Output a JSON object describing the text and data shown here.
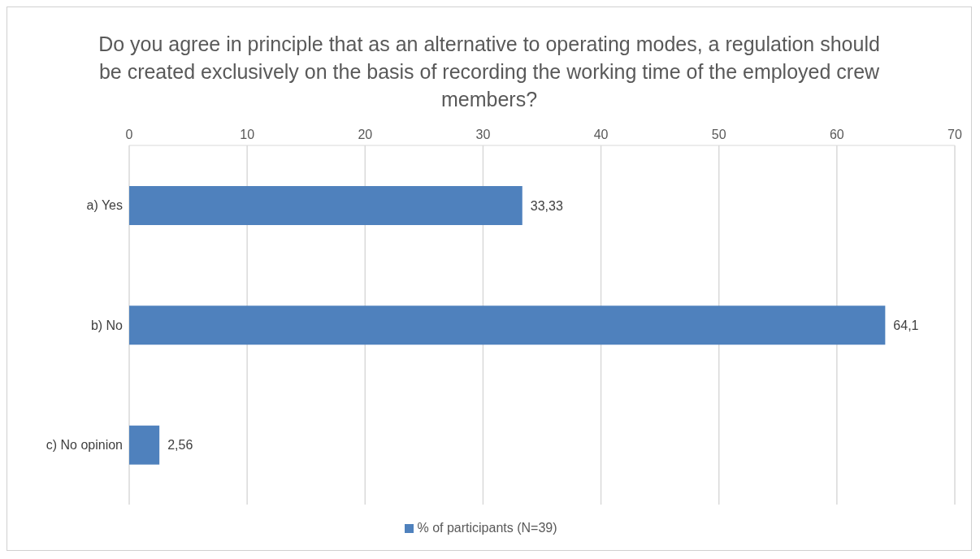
{
  "chart_data": {
    "type": "bar",
    "orientation": "horizontal",
    "title": "Do you agree in principle that as an alternative to operating modes, a regulation should be created exclusively on the basis of recording the working time of the employed crew members?",
    "categories": [
      "a) Yes",
      "b) No",
      "c) No opinion"
    ],
    "series": [
      {
        "name": "% of participants (N=39)",
        "color": "#4f81bd",
        "values": [
          33.33,
          64.1,
          2.56
        ],
        "value_labels": [
          "33,33",
          "64,1",
          "2,56"
        ]
      }
    ],
    "xlim": [
      0,
      70
    ],
    "xticks": [
      0,
      10,
      20,
      30,
      40,
      50,
      60,
      70
    ],
    "grid": "x",
    "legend": "bottom"
  }
}
